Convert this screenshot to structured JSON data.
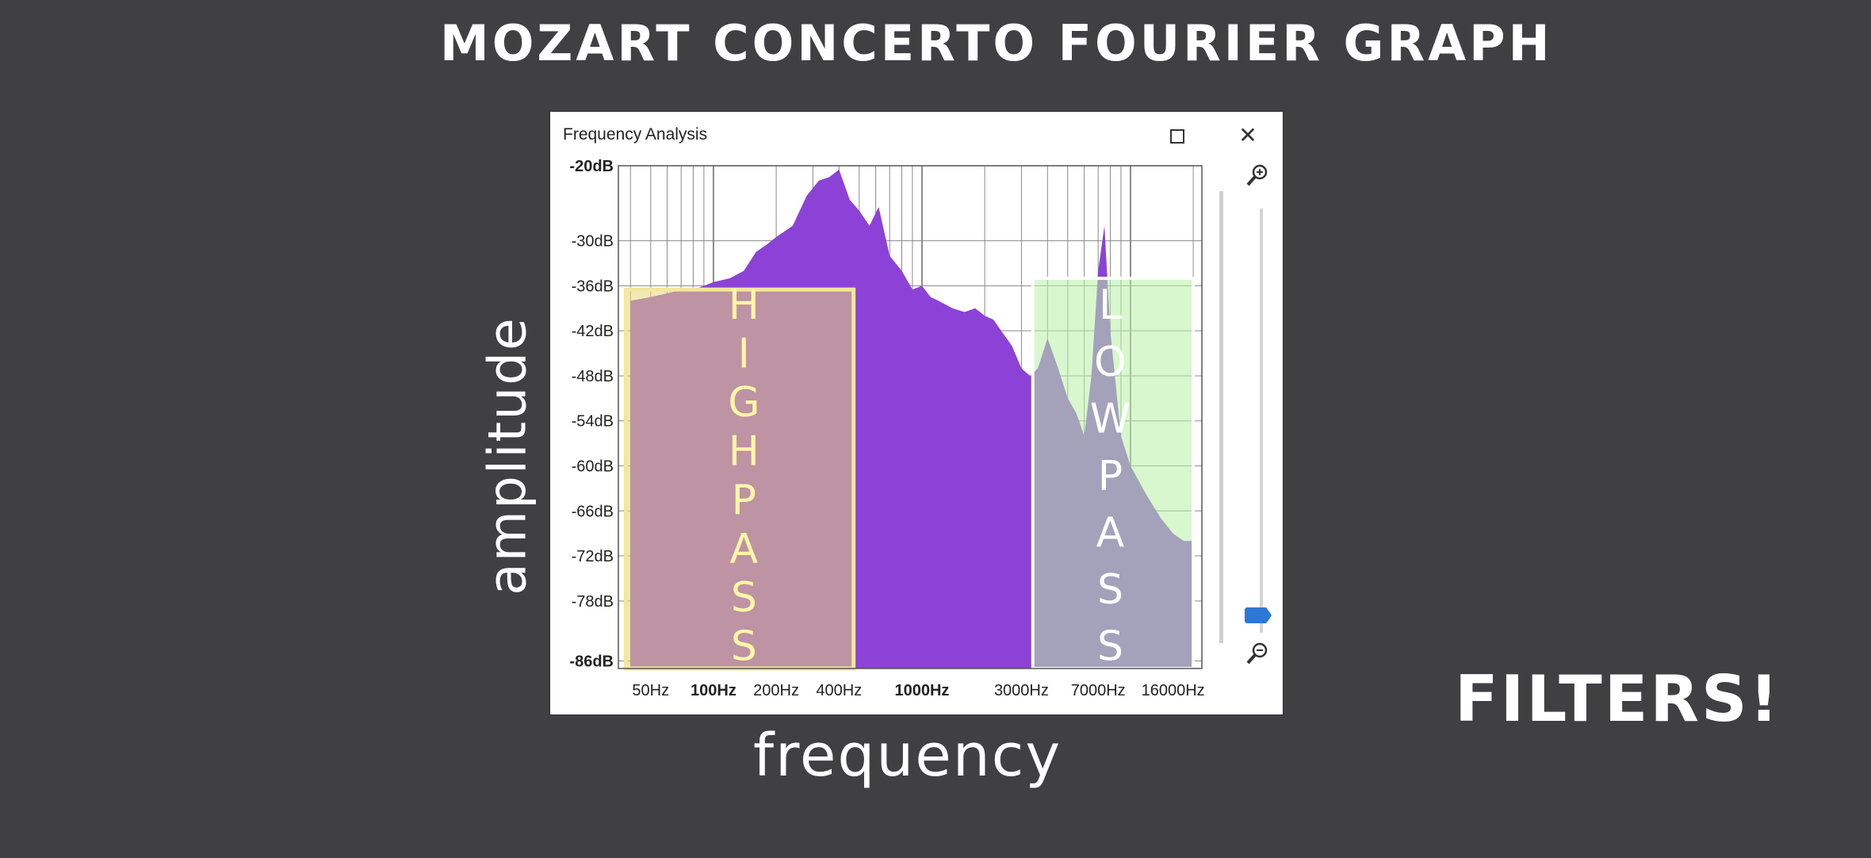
{
  "annotations": {
    "title": "MOZART CONCERTO FOURIER GRAPH",
    "amplitude": "amplitude",
    "frequency": "frequency",
    "filters": "FILTERS!",
    "high_pass": "HIGH PASS",
    "low_pass": "LOWPASS"
  },
  "window": {
    "title": "Frequency Analysis",
    "maximize_icon": "maximize-icon",
    "close_icon": "close-icon",
    "close_glyph": "✕",
    "zoom_in_icon": "zoom-in-icon",
    "zoom_out_icon": "zoom-out-icon"
  },
  "colors": {
    "background": "#403f42",
    "spectrum": "#8c42d6",
    "high_pass_fill": "#e8d77a",
    "low_pass_fill": "#b8f0a6",
    "grid": "#8a8a8a",
    "slider": "#2b78d6"
  },
  "chart_data": {
    "type": "area",
    "title": "",
    "xlabel": "",
    "ylabel": "",
    "x_scale": "log",
    "xlim": [
      35,
      22000
    ],
    "ylim": [
      -87,
      -20
    ],
    "grid": true,
    "y_ticks": [
      "-20dB",
      "-30dB",
      "-36dB",
      "-42dB",
      "-48dB",
      "-54dB",
      "-60dB",
      "-66dB",
      "-72dB",
      "-78dB",
      "-86dB"
    ],
    "y_tick_values": [
      -20,
      -30,
      -36,
      -42,
      -48,
      -54,
      -60,
      -66,
      -72,
      -78,
      -86
    ],
    "x_ticks": [
      "50Hz",
      "100Hz",
      "200Hz",
      "400Hz",
      "1000Hz",
      "3000Hz",
      "7000Hz",
      "16000Hz"
    ],
    "x_tick_values": [
      50,
      100,
      200,
      400,
      1000,
      3000,
      7000,
      16000
    ],
    "series": [
      {
        "x": [
          40,
          50,
          60,
          70,
          80,
          90,
          100,
          120,
          140,
          160,
          180,
          200,
          240,
          280,
          320,
          360,
          400,
          450,
          500,
          560,
          620,
          700,
          800,
          900,
          1000,
          1100,
          1200,
          1400,
          1600,
          1800,
          2000,
          2200,
          2400,
          2700,
          3000,
          3300,
          3600,
          4000,
          4500,
          5000,
          5500,
          6000,
          6500,
          7000,
          7500,
          8000,
          9000,
          10000,
          12000,
          14000,
          16000,
          18000,
          20000
        ],
        "y": [
          -38,
          -37.5,
          -37,
          -36.5,
          -36.5,
          -36,
          -35.5,
          -35,
          -34,
          -31.5,
          -30.5,
          -29.5,
          -28,
          -24,
          -22,
          -21.5,
          -20.5,
          -24.5,
          -26,
          -28,
          -25.5,
          -32,
          -34,
          -36.5,
          -36,
          -37.5,
          -38,
          -39,
          -39.5,
          -39,
          -40,
          -40.5,
          -42,
          -44,
          -47,
          -48,
          -47,
          -43,
          -47,
          -51,
          -53,
          -56,
          -48,
          -34,
          -28,
          -42,
          -56,
          -60,
          -64,
          -67,
          -69,
          -70,
          -70
        ]
      }
    ]
  }
}
